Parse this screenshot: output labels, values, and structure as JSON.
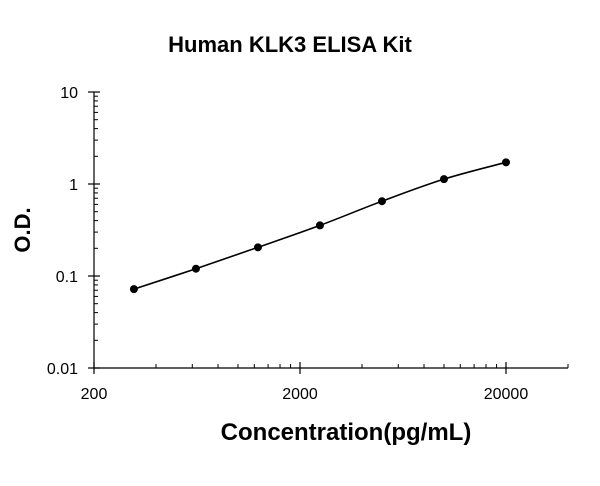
{
  "chart_data": {
    "type": "line",
    "title": "Human KLK3 ELISA Kit",
    "xlabel": "Concentration(pg/mL)",
    "ylabel": "O.D.",
    "x_scale": "log",
    "y_scale": "log",
    "xlim": [
      200,
      40000
    ],
    "ylim": [
      0.01,
      10
    ],
    "x_ticks": [
      200,
      2000,
      20000
    ],
    "x_tick_labels": [
      "200",
      "2000",
      "20000"
    ],
    "y_ticks": [
      0.01,
      0.1,
      1,
      10
    ],
    "y_tick_labels": [
      "0.01",
      "0.1",
      "1",
      "10"
    ],
    "grid": false,
    "legend": false,
    "series": [
      {
        "x": [
          312.5,
          625,
          1250,
          2500,
          5000,
          10000,
          20000
        ],
        "y": [
          0.072,
          0.12,
          0.205,
          0.355,
          0.65,
          1.13,
          1.72
        ],
        "color": "#000000",
        "marker": "circle",
        "smooth": true
      }
    ]
  }
}
